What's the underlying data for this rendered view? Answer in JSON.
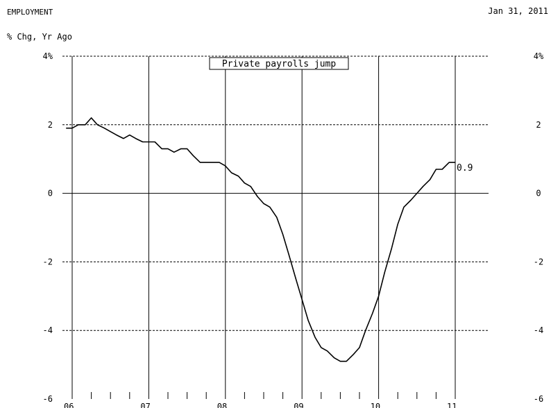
{
  "header": {
    "section": "EMPLOYMENT",
    "date": "Jan 31, 2011",
    "units": "% Chg, Yr Ago"
  },
  "chart_data": {
    "type": "line",
    "title": "",
    "annotation": "Private payrolls jump",
    "ylabel": "% Chg, Yr Ago",
    "xlabel": "",
    "ylim": [
      -6,
      4
    ],
    "xlim": [
      2006.0,
      2011.0
    ],
    "y_ticks_left": [
      "4%",
      "2",
      "0",
      "-2",
      "-4",
      "-6"
    ],
    "y_ticks_right": [
      "4%",
      "2",
      "0",
      "-2",
      "-4",
      "-6"
    ],
    "y_tick_values": [
      4,
      2,
      0,
      -2,
      -4,
      -6
    ],
    "x_ticks": [
      "06",
      "07",
      "08",
      "09",
      "10",
      "11"
    ],
    "x_tick_values": [
      2006,
      2007,
      2008,
      2009,
      2010,
      2011
    ],
    "grid": true,
    "last_value_label": "0.9",
    "series": [
      {
        "x": [
          2005.92,
          2006.0,
          2006.08,
          2006.17,
          2006.25,
          2006.33,
          2006.42,
          2006.5,
          2006.58,
          2006.67,
          2006.75,
          2006.83,
          2006.92,
          2007.0,
          2007.08,
          2007.17,
          2007.25,
          2007.33,
          2007.42,
          2007.5,
          2007.58,
          2007.67,
          2007.75,
          2007.83,
          2007.92,
          2008.0,
          2008.08,
          2008.17,
          2008.25,
          2008.33,
          2008.42,
          2008.5,
          2008.58,
          2008.67,
          2008.75,
          2008.83,
          2008.92,
          2009.0,
          2009.08,
          2009.17,
          2009.25,
          2009.33,
          2009.42,
          2009.5,
          2009.58,
          2009.67,
          2009.75,
          2009.83,
          2009.92,
          2010.0,
          2010.08,
          2010.17,
          2010.25,
          2010.33,
          2010.42,
          2010.5,
          2010.58,
          2010.67,
          2010.75,
          2010.83,
          2010.92,
          2011.0
        ],
        "values": [
          1.9,
          1.9,
          2.0,
          2.0,
          2.2,
          2.0,
          1.9,
          1.8,
          1.7,
          1.6,
          1.7,
          1.6,
          1.5,
          1.5,
          1.5,
          1.3,
          1.3,
          1.2,
          1.3,
          1.3,
          1.1,
          0.9,
          0.9,
          0.9,
          0.9,
          0.8,
          0.6,
          0.5,
          0.3,
          0.2,
          -0.1,
          -0.3,
          -0.4,
          -0.7,
          -1.2,
          -1.8,
          -2.5,
          -3.1,
          -3.7,
          -4.2,
          -4.5,
          -4.6,
          -4.8,
          -4.9,
          -4.9,
          -4.7,
          -4.5,
          -4.0,
          -3.5,
          -3.0,
          -2.3,
          -1.6,
          -0.9,
          -0.4,
          -0.2,
          0.0,
          0.2,
          0.4,
          0.7,
          0.7,
          0.9,
          0.9
        ]
      }
    ]
  }
}
